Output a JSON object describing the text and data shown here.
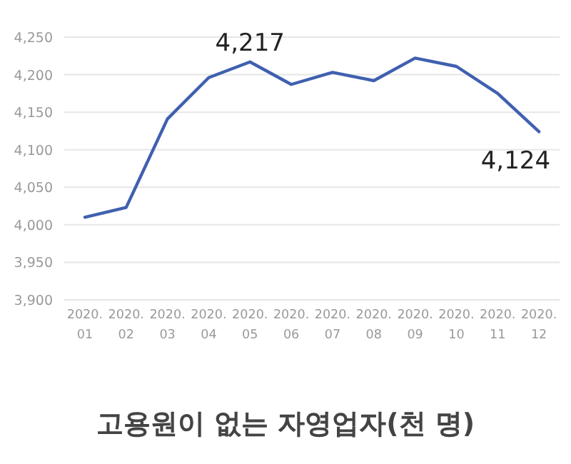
{
  "chart_data": {
    "type": "line",
    "title": "고용원이 없는 자영업자(천 명)",
    "categories": [
      "2020. 01",
      "2020. 02",
      "2020. 03",
      "2020. 04",
      "2020. 05",
      "2020. 06",
      "2020. 07",
      "2020. 08",
      "2020. 09",
      "2020. 10",
      "2020. 11",
      "2020. 12"
    ],
    "series": [
      {
        "color": "#4060b0",
        "values": [
          4010,
          4023,
          4141,
          4196,
          4217,
          4187,
          4203,
          4192,
          4222,
          4211,
          4175,
          4124
        ],
        "value_labels": [
          null,
          null,
          null,
          null,
          "4,217",
          null,
          null,
          null,
          null,
          null,
          null,
          "4,124"
        ]
      }
    ],
    "ylim": [
      3900,
      4250
    ],
    "yticks": [
      {
        "value": 3900,
        "label": "3,900"
      },
      {
        "value": 3950,
        "label": "3,950"
      },
      {
        "value": 4000,
        "label": "4,000"
      },
      {
        "value": 4050,
        "label": "4,050"
      },
      {
        "value": 4100,
        "label": "4,100"
      },
      {
        "value": 4150,
        "label": "4,150"
      },
      {
        "value": 4200,
        "label": "4,200"
      },
      {
        "value": 4250,
        "label": "4,250"
      }
    ],
    "grid": "y",
    "marker": "none"
  }
}
